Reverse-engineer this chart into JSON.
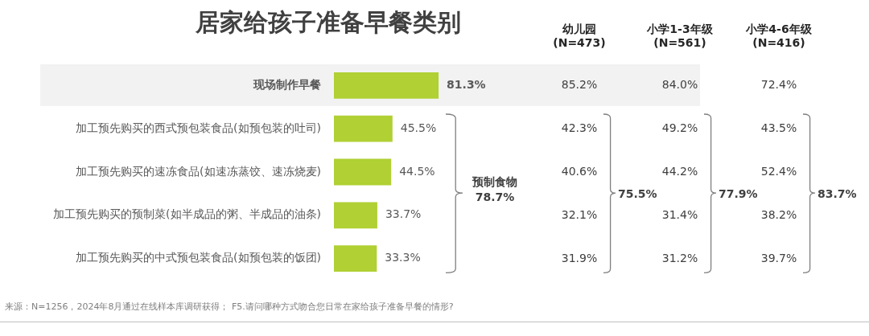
{
  "chart_data": [
    {
      "type": "bar",
      "orientation": "horizontal",
      "title": "居家给孩子准备早餐类别",
      "categories": [
        "现场制作早餐",
        "加工预先购买的西式预包装食品(如预包装的吐司)",
        "加工预先购买的速冻食品(如速冻蒸饺、速冻烧麦)",
        "加工预先购买的预制菜(如半成品的粥、半成品的油条)",
        "加工预先购买的中式预包装食品(如预包装的饭团)"
      ],
      "values": [
        81.3,
        45.5,
        44.5,
        33.7,
        33.3
      ],
      "value_labels": [
        "81.3%",
        "45.5%",
        "44.5%",
        "33.7%",
        "33.3%"
      ],
      "color": "#b0d033",
      "bands": [
        {
          "axis": "y",
          "from": "现场制作早餐",
          "to": "现场制作早餐",
          "color": "#f2f2f2"
        }
      ],
      "annotations": [
        "预制食物",
        "78.7%",
        "来源：N=1256，2024年8月通过在线样本库调研获得； F5.请问哪种方式吻合您日常在家给孩子准备早餐的情形?"
      ]
    },
    {
      "type": "other",
      "title": "幼儿园",
      "subtitle": "(N=473)",
      "categories": [
        null,
        null,
        null,
        null,
        null
      ],
      "values": [
        85.2,
        42.3,
        40.6,
        32.1,
        31.9
      ],
      "value_labels": [
        "85.2%",
        "42.3%",
        "40.6%",
        "32.1%",
        "31.9%"
      ],
      "annotations": [
        "75.5%"
      ]
    },
    {
      "type": "other",
      "title": "小学1-3年级",
      "subtitle": "(N=561)",
      "categories": [
        null,
        null,
        null,
        null,
        null
      ],
      "values": [
        84.0,
        49.2,
        44.2,
        31.4,
        31.2
      ],
      "value_labels": [
        "84.0%",
        "49.2%",
        "44.2%",
        "31.4%",
        "31.2%"
      ],
      "annotations": [
        "77.9%"
      ]
    },
    {
      "type": "other",
      "title": "小学4-6年级",
      "subtitle": "(N=416)",
      "categories": [
        null,
        null,
        null,
        null,
        null
      ],
      "values": [
        72.4,
        43.5,
        52.4,
        38.2,
        39.7
      ],
      "value_labels": [
        "72.4%",
        "43.5%",
        "52.4%",
        "38.2%",
        "39.7%"
      ],
      "annotations": [
        "83.7%"
      ]
    }
  ]
}
